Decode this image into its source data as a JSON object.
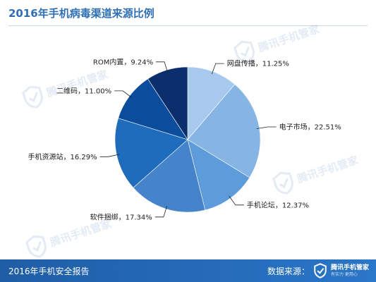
{
  "header": {
    "title": "2016年手机病毒渠道来源比例"
  },
  "chart_data": {
    "type": "pie",
    "title": "2016年手机病毒渠道来源比例",
    "start_angle": "12 o'clock",
    "direction": "clockwise",
    "slices": [
      {
        "label": "网盘传播",
        "value": 11.25,
        "display": "网盘传播，11.25%",
        "color": "#a8c9ee"
      },
      {
        "label": "电子市场",
        "value": 22.51,
        "display": "电子市场，22.51%",
        "color": "#86b5e4"
      },
      {
        "label": "手机论坛",
        "value": 12.37,
        "display": "手机论坛，12.37%",
        "color": "#5d9bdb"
      },
      {
        "label": "软件捆绑",
        "value": 17.34,
        "display": "软件捆绑，17.34%",
        "color": "#4584cb"
      },
      {
        "label": "手机资源站",
        "value": 16.29,
        "display": "手机资源站，16.29%",
        "color": "#1f6cbd"
      },
      {
        "label": "二维码",
        "value": 11.0,
        "display": "二维码，11.00%",
        "color": "#0b4d9c"
      },
      {
        "label": "ROM内置",
        "value": 9.24,
        "display": "ROM内置，9.24%",
        "color": "#0a2f6c"
      }
    ]
  },
  "watermark": {
    "brand": "腾讯手机管家",
    "icon": "shield-check-icon"
  },
  "footer": {
    "report": "2016年手机安全报告",
    "source_label": "数据来源：",
    "brand_name": "腾讯手机管家",
    "brand_tagline": "有实力 更用心",
    "brand_icon": "shield-check-icon"
  }
}
